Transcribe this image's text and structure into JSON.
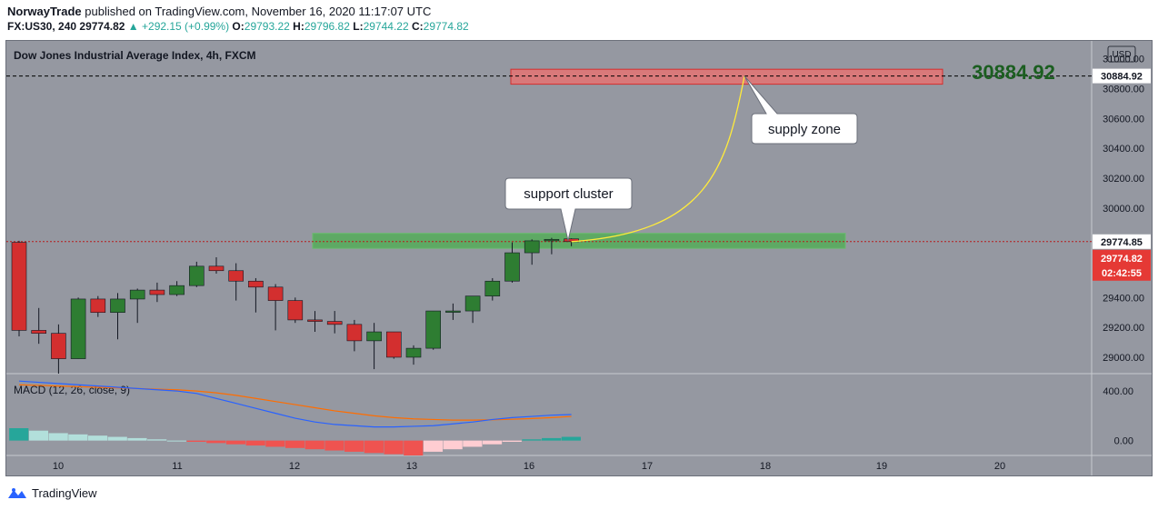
{
  "header": {
    "author": "NorwayTrade",
    "published": "published on TradingView.com, November 16, 2020 11:17:07 UTC",
    "symbol": "FX:US30, 240",
    "last": "29774.82",
    "change": "▲ +292.15 (+0.99%)",
    "o_label": "O:",
    "o": "29793.22",
    "h_label": "H:",
    "h": "29796.82",
    "l_label": "L:",
    "l": "29744.22",
    "c_label": "C:",
    "c": "29774.82"
  },
  "chart_data": {
    "type": "candlestick",
    "title": "Dow Jones Industrial Average Index, 4h, FXCM",
    "currency": "USD",
    "y_axis_ticks": [
      "31000.00",
      "30800.00",
      "30600.00",
      "30400.00",
      "30200.00",
      "30000.00",
      "29800.00",
      "29600.00",
      "29400.00",
      "29200.00",
      "29000.00"
    ],
    "y_axis_values": [
      31000,
      30800,
      30600,
      30400,
      30200,
      30000,
      29800,
      29600,
      29400,
      29200,
      29000
    ],
    "ylim": [
      28890,
      31120
    ],
    "x_axis_ticks": [
      "10",
      "11",
      "12",
      "13",
      "16",
      "17",
      "18",
      "19",
      "20"
    ],
    "candles": [
      {
        "o": 29770,
        "h": 29780,
        "l": 29140,
        "c": 29180
      },
      {
        "o": 29180,
        "h": 29330,
        "l": 29090,
        "c": 29160
      },
      {
        "o": 29160,
        "h": 29220,
        "l": 28890,
        "c": 28990
      },
      {
        "o": 28990,
        "h": 29400,
        "l": 28990,
        "c": 29390
      },
      {
        "o": 29390,
        "h": 29410,
        "l": 29270,
        "c": 29300
      },
      {
        "o": 29300,
        "h": 29430,
        "l": 29120,
        "c": 29390
      },
      {
        "o": 29390,
        "h": 29460,
        "l": 29230,
        "c": 29450
      },
      {
        "o": 29450,
        "h": 29500,
        "l": 29370,
        "c": 29420
      },
      {
        "o": 29420,
        "h": 29510,
        "l": 29410,
        "c": 29480
      },
      {
        "o": 29480,
        "h": 29640,
        "l": 29470,
        "c": 29610
      },
      {
        "o": 29610,
        "h": 29670,
        "l": 29560,
        "c": 29580
      },
      {
        "o": 29580,
        "h": 29630,
        "l": 29380,
        "c": 29510
      },
      {
        "o": 29510,
        "h": 29530,
        "l": 29300,
        "c": 29470
      },
      {
        "o": 29470,
        "h": 29490,
        "l": 29180,
        "c": 29380
      },
      {
        "o": 29380,
        "h": 29400,
        "l": 29230,
        "c": 29250
      },
      {
        "o": 29250,
        "h": 29310,
        "l": 29170,
        "c": 29240
      },
      {
        "o": 29240,
        "h": 29310,
        "l": 29160,
        "c": 29220
      },
      {
        "o": 29220,
        "h": 29250,
        "l": 29040,
        "c": 29110
      },
      {
        "o": 29110,
        "h": 29230,
        "l": 28920,
        "c": 29170
      },
      {
        "o": 29170,
        "h": 29170,
        "l": 28990,
        "c": 29000
      },
      {
        "o": 29000,
        "h": 29080,
        "l": 28950,
        "c": 29060
      },
      {
        "o": 29060,
        "h": 29310,
        "l": 29050,
        "c": 29310
      },
      {
        "o": 29310,
        "h": 29360,
        "l": 29250,
        "c": 29310
      },
      {
        "o": 29310,
        "h": 29410,
        "l": 29230,
        "c": 29410
      },
      {
        "o": 29410,
        "h": 29530,
        "l": 29380,
        "c": 29510
      },
      {
        "o": 29510,
        "h": 29770,
        "l": 29500,
        "c": 29700
      },
      {
        "o": 29700,
        "h": 29790,
        "l": 29620,
        "c": 29780
      },
      {
        "o": 29780,
        "h": 29800,
        "l": 29690,
        "c": 29790
      },
      {
        "o": 29793.22,
        "h": 29796.82,
        "l": 29744.22,
        "c": 29774.82
      }
    ],
    "levels": {
      "target": 30884.92,
      "current_line": 29774.85,
      "last_price": 29774.82
    },
    "supply_zone": {
      "y_low": 30830,
      "y_high": 30930
    },
    "support_zone": {
      "y_low": 29730,
      "y_high": 29830
    },
    "price_labels": {
      "target": "30884.92",
      "line": "29774.85",
      "last": "29774.82",
      "countdown": "02:42:55",
      "big_target": "30884.92"
    },
    "annotations": [
      "support cluster",
      "supply zone"
    ],
    "macd": {
      "title": "MACD (12, 26, close, 9)",
      "ticks": [
        "400.00",
        "0.00"
      ],
      "tick_values": [
        400,
        0
      ],
      "ylim": [
        -120,
        540
      ],
      "histogram": [
        100,
        80,
        60,
        50,
        40,
        30,
        20,
        10,
        0,
        -10,
        -20,
        -30,
        -40,
        -50,
        -60,
        -70,
        -80,
        -90,
        -100,
        -110,
        -120,
        -90,
        -70,
        -50,
        -30,
        -10,
        10,
        20,
        30
      ],
      "macd_line": [
        480,
        470,
        460,
        450,
        440,
        430,
        420,
        410,
        400,
        380,
        340,
        300,
        260,
        220,
        180,
        150,
        130,
        120,
        110,
        110,
        115,
        120,
        135,
        150,
        170,
        185,
        195,
        205,
        210
      ],
      "signal_line": [
        450,
        445,
        440,
        435,
        430,
        425,
        420,
        415,
        410,
        400,
        385,
        365,
        340,
        315,
        290,
        265,
        240,
        220,
        200,
        185,
        175,
        170,
        165,
        165,
        168,
        172,
        178,
        185,
        195
      ],
      "colors": {
        "macd": "#2962ff",
        "signal": "#ff6d00",
        "hist_up": "#26a69a",
        "hist_up_fade": "#b2dfdb",
        "hist_down": "#ef5350",
        "hist_down_fade": "#ffcdd2"
      }
    },
    "colors": {
      "up": "#2e7d32",
      "down": "#d32f2f",
      "background": "#9598a1",
      "target_text": "#1b5e20",
      "curve": "#ffeb3b"
    }
  },
  "footer": {
    "brand": "TradingView"
  }
}
